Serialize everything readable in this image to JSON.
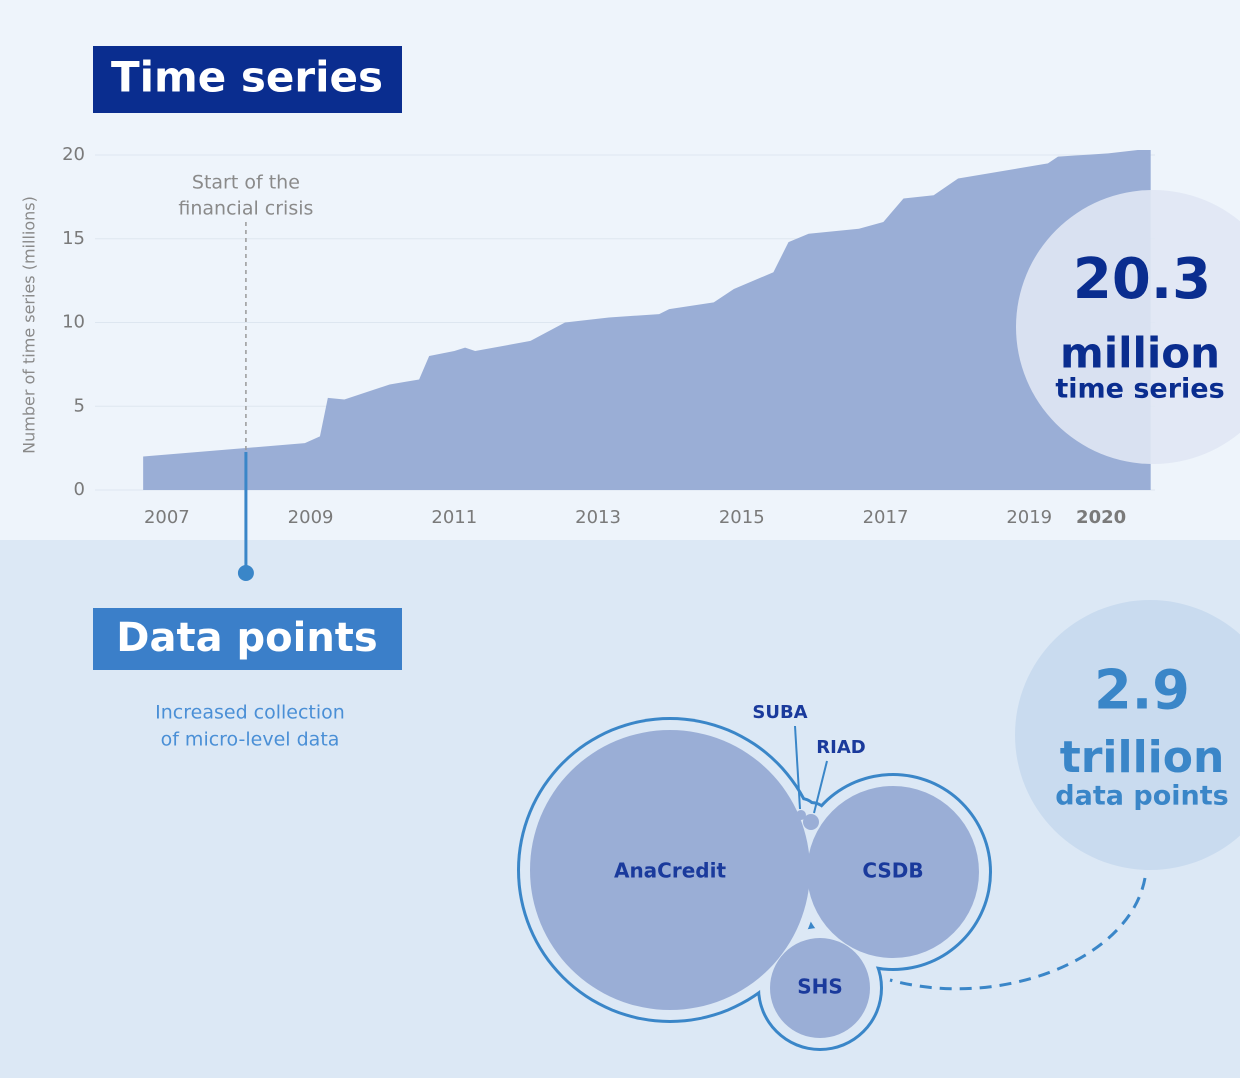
{
  "chart_data": {
    "type": "area",
    "title": "Time series",
    "y_label": "Number of time series (millions)",
    "x": [
      2006.67,
      2008.08,
      2008.92,
      2009.13,
      2009.24,
      2009.47,
      2010.1,
      2010.51,
      2010.65,
      2011.0,
      2011.15,
      2011.29,
      2012.06,
      2012.54,
      2013.15,
      2013.85,
      2013.99,
      2014.61,
      2014.89,
      2015.44,
      2015.65,
      2015.93,
      2016.63,
      2016.97,
      2017.25,
      2017.67,
      2018.01,
      2018.57,
      2019.26,
      2019.4,
      2020.1,
      2020.51,
      2020.69
    ],
    "values": [
      2.0,
      2.5,
      2.8,
      3.2,
      5.5,
      5.4,
      6.3,
      6.6,
      8.0,
      8.3,
      8.5,
      8.3,
      8.9,
      10.0,
      10.3,
      10.5,
      10.8,
      11.2,
      12.0,
      13.0,
      14.8,
      15.3,
      15.6,
      16.0,
      17.4,
      17.6,
      18.6,
      19.0,
      19.5,
      19.9,
      20.1,
      20.3,
      20.3
    ],
    "color": "#9aaed6",
    "xlim": [
      2006,
      2020.75
    ],
    "xticks": [
      2007,
      2009,
      2011,
      2013,
      2015,
      2017,
      2019,
      2020
    ],
    "ylim": [
      0,
      20
    ],
    "yticks": [
      0,
      5,
      10,
      15,
      20
    ],
    "grid": true,
    "annotation": {
      "text": [
        "Start of the",
        "financial crisis"
      ],
      "x": 2008.1
    },
    "callout": {
      "value": 20.3,
      "unit": "million",
      "label": "time series"
    }
  },
  "data_points": {
    "title": "Data points",
    "subtitle": [
      "Increased collection",
      "of micro-level data"
    ],
    "bubbles": [
      "SUBA",
      "RIAD",
      "AnaCredit",
      "CSDB",
      "SHS"
    ],
    "total": {
      "value": 2.9,
      "unit": "trillion",
      "label": "data points"
    }
  }
}
